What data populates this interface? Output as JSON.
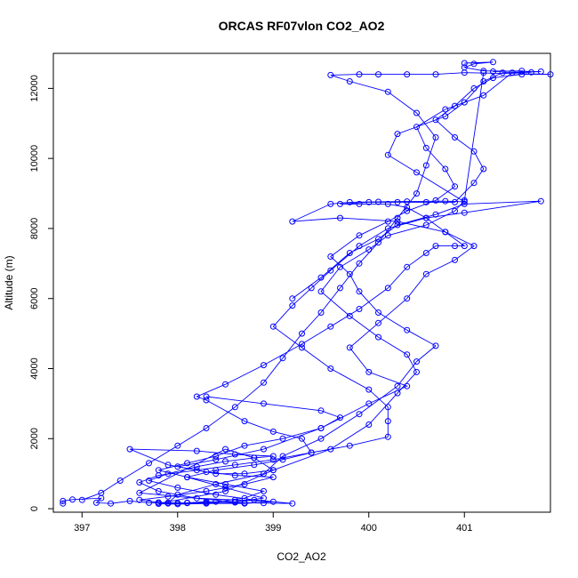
{
  "chart_data": {
    "type": "scatter",
    "title": "ORCAS RF07vlon CO2_AO2",
    "xlabel": "CO2_AO2",
    "ylabel": "Altitude (m)",
    "xlim": [
      396.7,
      401.9
    ],
    "ylim": [
      -100,
      13000
    ],
    "x_ticks": [
      397,
      398,
      399,
      400,
      401
    ],
    "y_ticks": [
      0,
      2000,
      4000,
      6000,
      8000,
      10000,
      12000
    ],
    "grid": false,
    "legend": "none",
    "style": {
      "color": "#0000ff",
      "marker": "open-circle",
      "connected": true
    },
    "series": [
      {
        "points": [
          [
            396.8,
            150
          ],
          [
            396.8,
            220
          ],
          [
            396.9,
            260
          ],
          [
            397.2,
            300
          ],
          [
            397.15,
            170
          ],
          [
            397.3,
            150
          ],
          [
            397.5,
            220
          ],
          [
            397.7,
            170
          ],
          [
            397.9,
            150
          ],
          [
            398.1,
            170
          ],
          [
            398.3,
            200
          ],
          [
            398.6,
            180
          ],
          [
            398.9,
            160
          ],
          [
            399.2,
            150
          ],
          [
            398.8,
            250
          ],
          [
            398.4,
            400
          ],
          [
            398.0,
            600
          ],
          [
            397.7,
            800
          ],
          [
            397.9,
            1000
          ],
          [
            398.2,
            1200
          ],
          [
            398.5,
            1350
          ],
          [
            398.8,
            1450
          ],
          [
            399.0,
            1500
          ],
          [
            398.6,
            1550
          ],
          [
            398.2,
            1650
          ],
          [
            397.5,
            1700
          ],
          [
            397.9,
            1250
          ],
          [
            398.3,
            1050
          ],
          [
            398.6,
            950
          ],
          [
            399.0,
            900
          ],
          [
            398.7,
            700
          ],
          [
            398.3,
            500
          ],
          [
            397.9,
            350
          ],
          [
            397.6,
            250
          ],
          [
            397.8,
            180
          ],
          [
            398.0,
            160
          ],
          [
            398.3,
            170
          ],
          [
            398.6,
            200
          ],
          [
            398.9,
            300
          ],
          [
            398.5,
            600
          ],
          [
            398.1,
            900
          ],
          [
            398.4,
            1100
          ],
          [
            398.8,
            1250
          ],
          [
            399.1,
            1400
          ],
          [
            399.4,
            1600
          ],
          [
            399.3,
            2000
          ],
          [
            399.0,
            2200
          ],
          [
            398.7,
            2500
          ],
          [
            398.3,
            3100
          ],
          [
            398.2,
            3200
          ],
          [
            398.5,
            3550
          ],
          [
            398.9,
            4100
          ],
          [
            399.3,
            4700
          ],
          [
            399.6,
            5200
          ],
          [
            399.9,
            5700
          ],
          [
            400.2,
            6300
          ],
          [
            400.4,
            6900
          ],
          [
            400.6,
            7300
          ],
          [
            400.7,
            7500
          ],
          [
            400.9,
            7500
          ],
          [
            401.0,
            7500
          ],
          [
            400.8,
            7900
          ],
          [
            400.6,
            8300
          ],
          [
            400.4,
            8600
          ],
          [
            400.2,
            8700
          ],
          [
            399.9,
            8700
          ],
          [
            399.7,
            8700
          ],
          [
            400.0,
            8750
          ],
          [
            400.3,
            8750
          ],
          [
            400.6,
            8750
          ],
          [
            400.9,
            8750
          ],
          [
            401.1,
            9300
          ],
          [
            401.2,
            9700
          ],
          [
            401.1,
            10200
          ],
          [
            400.9,
            10600
          ],
          [
            400.7,
            11100
          ],
          [
            400.9,
            11500
          ],
          [
            401.1,
            12000
          ],
          [
            401.3,
            12300
          ],
          [
            401.6,
            12400
          ],
          [
            401.9,
            12400
          ],
          [
            401.0,
            12450
          ],
          [
            400.7,
            12400
          ],
          [
            400.4,
            12400
          ],
          [
            400.1,
            12400
          ],
          [
            399.9,
            12400
          ],
          [
            399.6,
            12380
          ],
          [
            399.8,
            12200
          ],
          [
            400.2,
            11900
          ],
          [
            400.5,
            11300
          ],
          [
            400.7,
            10600
          ],
          [
            400.6,
            9800
          ],
          [
            400.5,
            9000
          ],
          [
            400.3,
            8300
          ],
          [
            400.1,
            7600
          ],
          [
            399.9,
            7000
          ],
          [
            399.7,
            6300
          ],
          [
            399.5,
            5600
          ],
          [
            399.3,
            5000
          ],
          [
            399.1,
            4300
          ],
          [
            398.9,
            3600
          ],
          [
            398.6,
            2900
          ],
          [
            398.3,
            2300
          ],
          [
            398.0,
            1800
          ],
          [
            397.7,
            1300
          ],
          [
            397.4,
            800
          ],
          [
            397.2,
            450
          ],
          [
            397.0,
            250
          ]
        ]
      },
      {
        "points": [
          [
            399.2,
            6000
          ],
          [
            399.5,
            6600
          ],
          [
            399.8,
            7300
          ],
          [
            400.1,
            7700
          ],
          [
            400.3,
            8100
          ],
          [
            400.7,
            8400
          ],
          [
            401.0,
            8700
          ],
          [
            401.8,
            8780
          ],
          [
            401.0,
            8450
          ],
          [
            400.6,
            8300
          ],
          [
            400.2,
            8000
          ],
          [
            399.9,
            7500
          ],
          [
            399.6,
            6800
          ],
          [
            399.4,
            6300
          ],
          [
            399.2,
            5800
          ],
          [
            399.0,
            5200
          ],
          [
            399.3,
            4600
          ],
          [
            399.6,
            4000
          ],
          [
            400.0,
            3400
          ],
          [
            400.2,
            2900
          ],
          [
            400.2,
            2500
          ],
          [
            400.2,
            2050
          ],
          [
            399.8,
            1800
          ],
          [
            399.4,
            1600
          ],
          [
            399.0,
            1400
          ],
          [
            398.6,
            1250
          ],
          [
            398.2,
            1100
          ],
          [
            397.8,
            950
          ],
          [
            397.6,
            750
          ],
          [
            397.8,
            500
          ],
          [
            398.2,
            300
          ],
          [
            398.6,
            250
          ],
          [
            399.0,
            200
          ],
          [
            398.7,
            150
          ],
          [
            398.3,
            150
          ],
          [
            397.9,
            170
          ],
          [
            398.0,
            400
          ],
          [
            398.4,
            700
          ],
          [
            398.9,
            1000
          ],
          [
            399.1,
            1500
          ],
          [
            399.5,
            2000
          ],
          [
            399.9,
            2700
          ],
          [
            400.3,
            3500
          ],
          [
            400.5,
            4200
          ],
          [
            400.7,
            4650
          ],
          [
            400.4,
            5100
          ],
          [
            400.1,
            5600
          ],
          [
            399.9,
            6200
          ],
          [
            399.8,
            6700
          ],
          [
            399.6,
            7200
          ],
          [
            399.9,
            7800
          ],
          [
            400.2,
            8200
          ],
          [
            400.4,
            8500
          ],
          [
            400.7,
            8800
          ],
          [
            400.9,
            9200
          ],
          [
            400.8,
            9700
          ],
          [
            400.6,
            10300
          ],
          [
            400.5,
            10900
          ],
          [
            400.8,
            11400
          ],
          [
            401.2,
            11800
          ],
          [
            401.5,
            12450
          ],
          [
            401.8,
            12480
          ],
          [
            401.2,
            12500
          ],
          [
            401.0,
            12600
          ],
          [
            401.1,
            12700
          ],
          [
            401.3,
            12750
          ],
          [
            401.0,
            12720
          ]
        ]
      },
      {
        "points": [
          [
            398.3,
            3200
          ],
          [
            398.9,
            3000
          ],
          [
            399.5,
            2800
          ],
          [
            399.7,
            2600
          ],
          [
            399.5,
            2300
          ],
          [
            399.1,
            2000
          ],
          [
            398.7,
            1800
          ],
          [
            398.4,
            1500
          ],
          [
            398.1,
            1300
          ],
          [
            397.8,
            1100
          ],
          [
            398.1,
            900
          ],
          [
            398.5,
            700
          ],
          [
            398.9,
            500
          ],
          [
            398.7,
            300
          ],
          [
            398.4,
            200
          ],
          [
            398.1,
            160
          ],
          [
            397.8,
            140
          ],
          [
            398.0,
            130
          ],
          [
            398.7,
            170
          ],
          [
            397.6,
            450
          ],
          [
            398.5,
            1700
          ],
          [
            398.8,
            1450
          ],
          [
            399.0,
            1100
          ],
          [
            398.7,
            1000
          ],
          [
            398.4,
            1000
          ],
          [
            398.0,
            1200
          ],
          [
            398.4,
            1400
          ],
          [
            398.9,
            1700
          ],
          [
            399.5,
            2300
          ],
          [
            400.0,
            3000
          ],
          [
            400.4,
            3500
          ],
          [
            400.0,
            3900
          ],
          [
            399.8,
            4600
          ],
          [
            400.1,
            5300
          ],
          [
            400.4,
            6000
          ],
          [
            400.6,
            6700
          ],
          [
            400.9,
            7100
          ],
          [
            401.1,
            7500
          ],
          [
            400.8,
            7900
          ],
          [
            400.3,
            8200
          ],
          [
            399.7,
            8300
          ],
          [
            399.2,
            8200
          ],
          [
            399.6,
            8700
          ],
          [
            399.8,
            8750
          ],
          [
            400.1,
            8760
          ],
          [
            400.4,
            8770
          ],
          [
            400.8,
            8780
          ],
          [
            401.0,
            8760
          ],
          [
            400.5,
            9600
          ],
          [
            400.2,
            10100
          ],
          [
            400.3,
            10700
          ],
          [
            400.8,
            11200
          ],
          [
            401.0,
            11600
          ],
          [
            401.2,
            12200
          ],
          [
            401.4,
            12450
          ],
          [
            401.7,
            12460
          ],
          [
            401.6,
            12500
          ],
          [
            401.3,
            12480
          ]
        ]
      },
      {
        "points": [
          [
            397.8,
            150
          ],
          [
            398.5,
            500
          ],
          [
            399.0,
            1100
          ],
          [
            399.6,
            1700
          ],
          [
            400.0,
            2400
          ],
          [
            400.3,
            3300
          ],
          [
            400.5,
            3900
          ],
          [
            400.4,
            4400
          ],
          [
            400.1,
            4900
          ],
          [
            399.8,
            5500
          ],
          [
            399.5,
            6200
          ],
          [
            399.7,
            6900
          ],
          [
            400.0,
            7400
          ],
          [
            400.2,
            7800
          ],
          [
            400.6,
            8100
          ],
          [
            400.9,
            8500
          ],
          [
            401.0,
            8800
          ],
          [
            401.2,
            12450
          ]
        ]
      }
    ]
  }
}
